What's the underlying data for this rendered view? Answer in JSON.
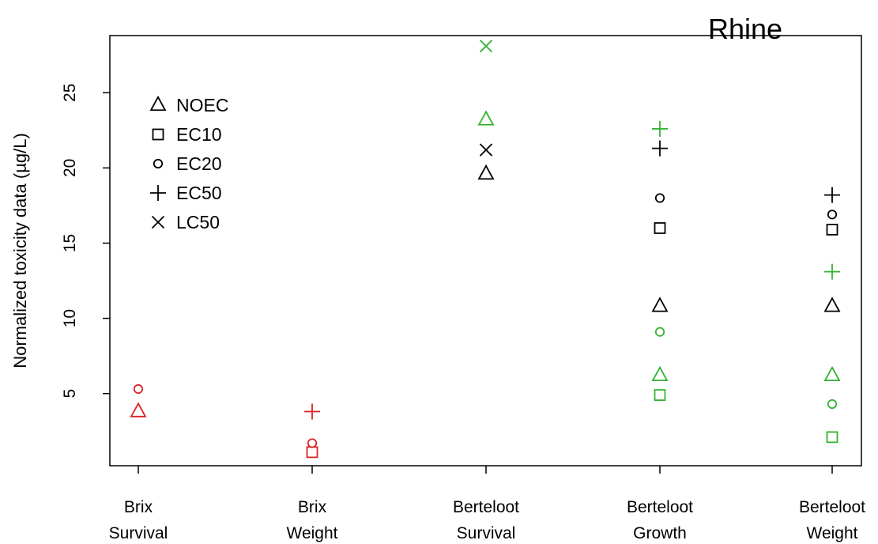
{
  "chart_data": {
    "type": "scatter",
    "title": "Rhine",
    "ylabel": "Normalized toxicity data (µg/L)",
    "xlabel": "",
    "ylim": [
      0.2,
      28.8
    ],
    "yticks": [
      5,
      10,
      15,
      20,
      25
    ],
    "grid": false,
    "legend_position": "top-left",
    "categories": [
      {
        "line1": "Brix",
        "line2": "Survival"
      },
      {
        "line1": "Brix",
        "line2": "Weight"
      },
      {
        "line1": "Berteloot",
        "line2": "Survival"
      },
      {
        "line1": "Berteloot",
        "line2": "Growth"
      },
      {
        "line1": "Berteloot",
        "line2": "Weight"
      }
    ],
    "legend": [
      {
        "label": "NOEC",
        "marker": "triangle"
      },
      {
        "label": "EC10",
        "marker": "square"
      },
      {
        "label": "EC20",
        "marker": "circle"
      },
      {
        "label": "EC50",
        "marker": "plus"
      },
      {
        "label": "LC50",
        "marker": "cross"
      }
    ],
    "colors": {
      "black": "#000000",
      "red": "#d8232a",
      "green": "#34b233"
    },
    "points": [
      {
        "category": 0,
        "value": 3.8,
        "endpoint": "NOEC",
        "color": "red"
      },
      {
        "category": 0,
        "value": 5.3,
        "endpoint": "EC20",
        "color": "red"
      },
      {
        "category": 1,
        "value": 3.8,
        "endpoint": "EC50",
        "color": "red"
      },
      {
        "category": 1,
        "value": 1.7,
        "endpoint": "EC20",
        "color": "red"
      },
      {
        "category": 1,
        "value": 1.1,
        "endpoint": "EC10",
        "color": "red"
      },
      {
        "category": 2,
        "value": 28.1,
        "endpoint": "LC50",
        "color": "green"
      },
      {
        "category": 2,
        "value": 23.2,
        "endpoint": "NOEC",
        "color": "green"
      },
      {
        "category": 2,
        "value": 21.2,
        "endpoint": "LC50",
        "color": "black"
      },
      {
        "category": 2,
        "value": 19.6,
        "endpoint": "NOEC",
        "color": "black"
      },
      {
        "category": 3,
        "value": 22.6,
        "endpoint": "EC50",
        "color": "green"
      },
      {
        "category": 3,
        "value": 21.3,
        "endpoint": "EC50",
        "color": "black"
      },
      {
        "category": 3,
        "value": 18.0,
        "endpoint": "EC20",
        "color": "black"
      },
      {
        "category": 3,
        "value": 16.0,
        "endpoint": "EC10",
        "color": "black"
      },
      {
        "category": 3,
        "value": 10.8,
        "endpoint": "NOEC",
        "color": "black"
      },
      {
        "category": 3,
        "value": 9.1,
        "endpoint": "EC20",
        "color": "green"
      },
      {
        "category": 3,
        "value": 6.2,
        "endpoint": "NOEC",
        "color": "green"
      },
      {
        "category": 3,
        "value": 4.9,
        "endpoint": "EC10",
        "color": "green"
      },
      {
        "category": 4,
        "value": 18.2,
        "endpoint": "EC50",
        "color": "black"
      },
      {
        "category": 4,
        "value": 16.9,
        "endpoint": "EC20",
        "color": "black"
      },
      {
        "category": 4,
        "value": 15.9,
        "endpoint": "EC10",
        "color": "black"
      },
      {
        "category": 4,
        "value": 13.1,
        "endpoint": "EC50",
        "color": "green"
      },
      {
        "category": 4,
        "value": 10.8,
        "endpoint": "NOEC",
        "color": "black"
      },
      {
        "category": 4,
        "value": 6.2,
        "endpoint": "NOEC",
        "color": "green"
      },
      {
        "category": 4,
        "value": 4.3,
        "endpoint": "EC20",
        "color": "green"
      },
      {
        "category": 4,
        "value": 2.1,
        "endpoint": "EC10",
        "color": "green"
      }
    ]
  }
}
